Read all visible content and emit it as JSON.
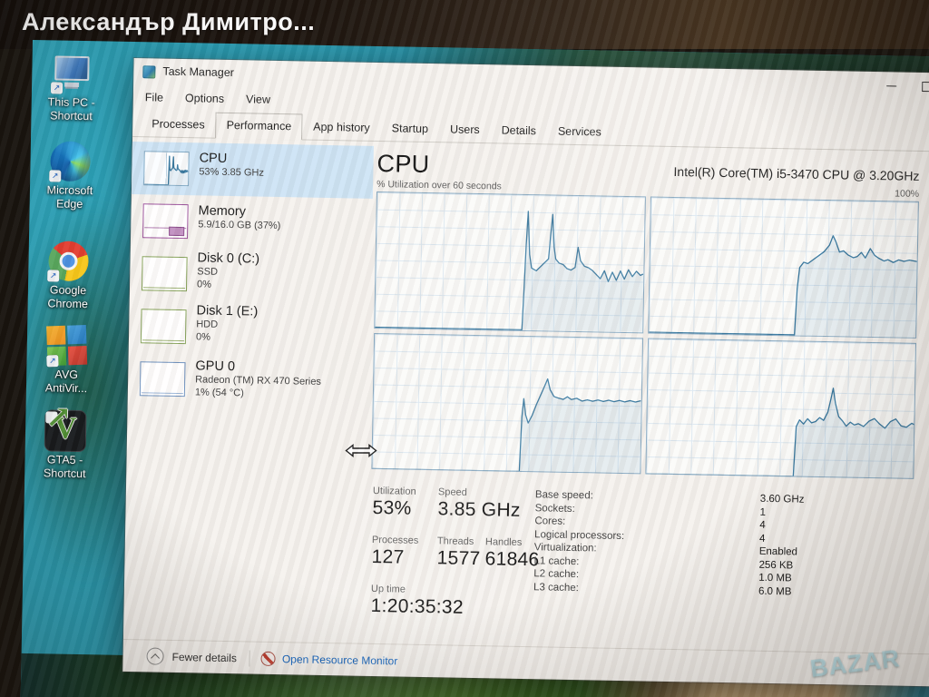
{
  "photo_caption": "Александър Димитро...",
  "watermark": "BAZAR",
  "colors": {
    "chart_line": "#35779f",
    "selected_sidebar_item": "#cde4f5",
    "link_blue": "#0b5fbd"
  },
  "desktop": {
    "icons": [
      {
        "label": "This PC -\nShortcut"
      },
      {
        "label": "Microsoft\nEdge"
      },
      {
        "label": "Google\nChrome"
      },
      {
        "label": "AVG\nAntiVir..."
      },
      {
        "label": "GTA5 -\nShortcut"
      }
    ],
    "gta_letter": "V",
    "shortcut_arrow": "↗"
  },
  "taskmanager": {
    "title": "Task Manager",
    "menu": {
      "file": "File",
      "options": "Options",
      "view": "View"
    },
    "tabs": {
      "processes": "Processes",
      "performance": "Performance",
      "app_history": "App history",
      "startup": "Startup",
      "users": "Users",
      "details": "Details",
      "services": "Services"
    },
    "sidebar": {
      "cpu": {
        "name": "CPU",
        "lines": [
          "53% 3.85 GHz"
        ]
      },
      "memory": {
        "name": "Memory",
        "lines": [
          "5.9/16.0 GB (37%)"
        ]
      },
      "disk0": {
        "name": "Disk 0 (C:)",
        "lines": [
          "SSD",
          "0%"
        ]
      },
      "disk1": {
        "name": "Disk 1 (E:)",
        "lines": [
          "HDD",
          "0%"
        ]
      },
      "gpu": {
        "name": "GPU 0",
        "lines": [
          "Radeon (TM) RX 470 Series",
          "1% (54 °C)"
        ]
      }
    },
    "main": {
      "title": "CPU",
      "cpu_name": "Intel(R) Core(TM) i5-3470 CPU @ 3.20GHz",
      "graph_label": "% Utilization over 60 seconds",
      "graph_max": "100%",
      "stats": {
        "utilization_label": "Utilization",
        "utilization": "53%",
        "speed_label": "Speed",
        "speed": "3.85 GHz",
        "processes_label": "Processes",
        "processes": "127",
        "threads_label": "Threads",
        "threads": "1577",
        "handles_label": "Handles",
        "handles": "61846",
        "uptime_label": "Up time",
        "uptime": "1:20:35:32"
      },
      "info": {
        "base_speed_label": "Base speed:",
        "base_speed": "3.60 GHz",
        "sockets_label": "Sockets:",
        "sockets": "1",
        "cores_label": "Cores:",
        "cores": "4",
        "logical_label": "Logical processors:",
        "logical": "4",
        "virtualization_label": "Virtualization:",
        "virtualization": "Enabled",
        "l1_label": "L1 cache:",
        "l1": "256 KB",
        "l2_label": "L2 cache:",
        "l2": "1.0 MB",
        "l3_label": "L3 cache:",
        "l3": "6.0 MB"
      }
    },
    "footer": {
      "fewer_details": "Fewer details",
      "open_resource_monitor": "Open Resource Monitor"
    }
  },
  "chart_data": {
    "type": "area",
    "title": "% Utilization over 60 seconds",
    "ylabel": "% Utilization",
    "ylim": [
      0,
      100
    ],
    "x_window_seconds": 60,
    "grid": true,
    "legend": "none",
    "note": "points are [percent-of-60s-window, utilization-percent]; activity begins ~27s before now",
    "series": [
      {
        "name": "Logical processor 1",
        "points": [
          [
            0,
            0
          ],
          [
            55,
            0
          ],
          [
            55.5,
            28
          ],
          [
            56,
            60
          ],
          [
            56.6,
            88
          ],
          [
            57.4,
            56
          ],
          [
            58.2,
            46
          ],
          [
            60,
            44
          ],
          [
            61.5,
            47
          ],
          [
            63,
            50
          ],
          [
            64.5,
            53
          ],
          [
            65.2,
            72
          ],
          [
            65.8,
            86
          ],
          [
            66.5,
            62
          ],
          [
            67.2,
            53
          ],
          [
            68.5,
            50
          ],
          [
            70,
            49
          ],
          [
            71.5,
            46
          ],
          [
            73,
            45
          ],
          [
            74.5,
            47
          ],
          [
            75.5,
            62
          ],
          [
            76.5,
            52
          ],
          [
            78,
            48
          ],
          [
            79.5,
            47
          ],
          [
            81,
            45
          ],
          [
            82.5,
            42
          ],
          [
            84,
            39
          ],
          [
            85.5,
            45
          ],
          [
            87,
            37
          ],
          [
            88.5,
            44
          ],
          [
            90,
            38
          ],
          [
            91.5,
            45
          ],
          [
            93,
            39
          ],
          [
            94.5,
            46
          ],
          [
            96,
            41
          ],
          [
            97.5,
            45
          ],
          [
            99,
            42
          ],
          [
            100,
            43
          ]
        ]
      },
      {
        "name": "Logical processor 2",
        "points": [
          [
            0,
            0
          ],
          [
            54.5,
            0
          ],
          [
            55.2,
            34
          ],
          [
            56,
            50
          ],
          [
            57.5,
            54
          ],
          [
            59,
            53
          ],
          [
            61,
            56
          ],
          [
            63,
            59
          ],
          [
            65,
            62
          ],
          [
            67,
            67
          ],
          [
            68.3,
            74
          ],
          [
            69.3,
            70
          ],
          [
            70.8,
            62
          ],
          [
            72.3,
            63
          ],
          [
            74,
            60
          ],
          [
            76,
            58
          ],
          [
            77.5,
            59
          ],
          [
            79,
            62
          ],
          [
            80.5,
            58
          ],
          [
            82.3,
            65
          ],
          [
            84,
            60
          ],
          [
            85.5,
            58
          ],
          [
            87.5,
            56
          ],
          [
            89,
            57
          ],
          [
            91,
            55
          ],
          [
            93,
            57
          ],
          [
            95,
            56
          ],
          [
            97,
            57
          ],
          [
            100,
            56
          ]
        ]
      },
      {
        "name": "Logical processor 3",
        "points": [
          [
            0,
            0
          ],
          [
            55,
            0
          ],
          [
            55.6,
            40
          ],
          [
            56.2,
            54
          ],
          [
            57,
            42
          ],
          [
            58,
            36
          ],
          [
            59.5,
            42
          ],
          [
            61,
            50
          ],
          [
            62.5,
            57
          ],
          [
            64,
            64
          ],
          [
            65,
            69
          ],
          [
            66,
            61
          ],
          [
            67.5,
            56
          ],
          [
            69,
            55
          ],
          [
            71,
            54
          ],
          [
            72.5,
            56
          ],
          [
            74,
            54
          ],
          [
            76,
            55
          ],
          [
            78,
            53
          ],
          [
            80,
            54
          ],
          [
            82,
            53
          ],
          [
            84,
            54
          ],
          [
            86,
            53
          ],
          [
            88,
            54
          ],
          [
            90,
            53
          ],
          [
            92,
            54
          ],
          [
            94,
            53
          ],
          [
            96,
            54
          ],
          [
            98,
            53
          ],
          [
            100,
            54
          ]
        ]
      },
      {
        "name": "Logical processor 4",
        "points": [
          [
            0,
            0
          ],
          [
            55,
            0
          ],
          [
            55.8,
            37
          ],
          [
            57,
            42
          ],
          [
            58.5,
            39
          ],
          [
            60,
            43
          ],
          [
            61.5,
            40
          ],
          [
            63,
            41
          ],
          [
            64.5,
            44
          ],
          [
            66,
            42
          ],
          [
            67.5,
            48
          ],
          [
            68.6,
            58
          ],
          [
            69.4,
            66
          ],
          [
            70.3,
            55
          ],
          [
            71.6,
            45
          ],
          [
            73,
            42
          ],
          [
            74.5,
            38
          ],
          [
            76,
            41
          ],
          [
            77.5,
            39
          ],
          [
            79,
            40
          ],
          [
            81,
            38
          ],
          [
            83,
            42
          ],
          [
            85,
            44
          ],
          [
            87,
            40
          ],
          [
            89,
            37
          ],
          [
            91,
            42
          ],
          [
            93,
            44
          ],
          [
            95,
            39
          ],
          [
            97,
            38
          ],
          [
            99,
            41
          ],
          [
            100,
            40
          ]
        ]
      }
    ]
  }
}
